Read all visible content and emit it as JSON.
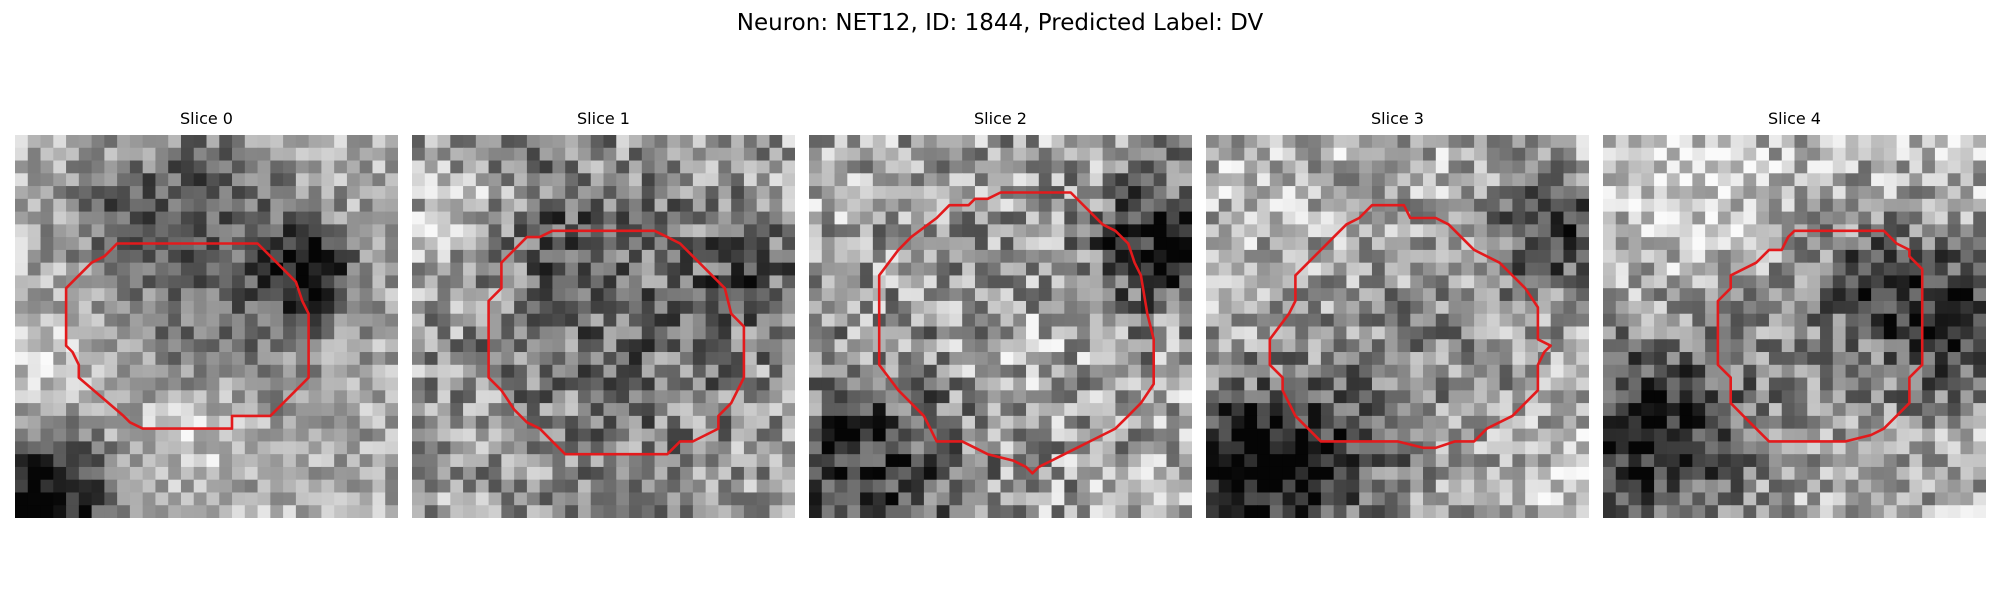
{
  "title": "Neuron: NET12, ID: 1844, Predicted Label: DV",
  "colors": {
    "contour": "#e31a1c",
    "colormap": "grayscale"
  },
  "slices": [
    {
      "label": "Slice 0"
    },
    {
      "label": "Slice 1"
    },
    {
      "label": "Slice 2"
    },
    {
      "label": "Slice 3"
    },
    {
      "label": "Slice 4"
    }
  ]
}
